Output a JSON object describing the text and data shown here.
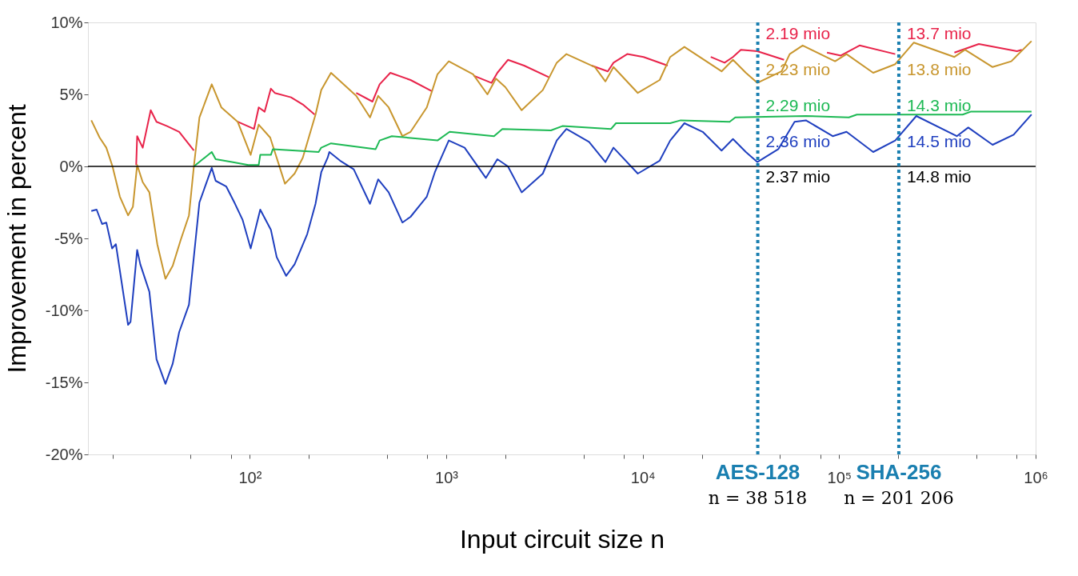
{
  "chart_data": {
    "type": "line",
    "xlabel": "Input circuit size n",
    "ylabel": "Improvement in percent",
    "log": "x",
    "xlim": [
      15,
      1000000
    ],
    "ylim": [
      -20,
      10
    ],
    "xticks": [
      {
        "value": 20,
        "label": null
      },
      {
        "value": 50,
        "label": null
      },
      {
        "value": 80,
        "label": null
      },
      {
        "value": 100,
        "label": "10²"
      },
      {
        "value": 200,
        "label": null
      },
      {
        "value": 500,
        "label": null
      },
      {
        "value": 800,
        "label": null
      },
      {
        "value": 1000,
        "label": "10³"
      },
      {
        "value": 2000,
        "label": null
      },
      {
        "value": 5000,
        "label": null
      },
      {
        "value": 8000,
        "label": null
      },
      {
        "value": 10000,
        "label": "10⁴"
      },
      {
        "value": 20000,
        "label": null
      },
      {
        "value": 50000,
        "label": null
      },
      {
        "value": 80000,
        "label": null
      },
      {
        "value": 100000,
        "label": "10⁵"
      },
      {
        "value": 200000,
        "label": null
      },
      {
        "value": 500000,
        "label": null
      },
      {
        "value": 800000,
        "label": null
      },
      {
        "value": 1000000,
        "label": "10⁶"
      }
    ],
    "yticks": [
      {
        "value": -20,
        "label": "-20%"
      },
      {
        "value": -15,
        "label": "-15%"
      },
      {
        "value": -10,
        "label": "-10%"
      },
      {
        "value": -5,
        "label": "-5%"
      },
      {
        "value": 0,
        "label": "0%"
      },
      {
        "value": 5,
        "label": "5%"
      },
      {
        "value": 10,
        "label": "10%"
      }
    ],
    "series": [
      {
        "color": "#e8234a",
        "x": [
          26.4,
          26.7,
          28.5,
          31.3,
          33.5,
          37.9,
          43.7,
          51.9,
          60,
          86.7,
          105,
          111,
          119,
          128,
          134,
          162,
          186,
          214,
          280,
          348,
          421,
          458,
          519,
          658,
          851,
          1200,
          1380,
          1700,
          1820,
          2060,
          2490,
          3320,
          4500,
          5500,
          6640,
          7100,
          8340,
          10100,
          13400,
          20000,
          22200,
          26100,
          28800,
          31600,
          38300,
          52400,
          65000,
          86700,
          102000,
          127000,
          193000,
          260000,
          386000,
          514000,
          804000,
          851000
        ],
        "values": [
          0.1,
          2.1,
          1.3,
          3.9,
          3.1,
          2.8,
          2.4,
          1.1,
          null,
          3.1,
          2.6,
          4.1,
          3.8,
          5.4,
          5.1,
          4.8,
          4.3,
          3.6,
          null,
          5.1,
          4.5,
          5.7,
          6.5,
          6.0,
          5.2,
          null,
          6.3,
          5.8,
          6.5,
          7.4,
          7.0,
          6.2,
          null,
          7.0,
          6.6,
          7.2,
          7.8,
          7.6,
          7.0,
          null,
          7.6,
          7.2,
          7.6,
          8.1,
          8.0,
          7.4,
          null,
          7.9,
          7.7,
          8.4,
          7.8,
          null,
          7.9,
          8.5,
          8.0,
          8.1
        ]
      },
      {
        "color": "#c8962e",
        "x": [
          15.6,
          17.2,
          18.6,
          20.0,
          21.8,
          24.0,
          25.4,
          26.7,
          28.5,
          30.8,
          33.8,
          37.2,
          40.5,
          44.5,
          49.0,
          51.9,
          55.4,
          64.0,
          71.6,
          86.7,
          101,
          111,
          127,
          151,
          169,
          186,
          216,
          231,
          259,
          348,
          409,
          450,
          509,
          598,
          658,
          796,
          902,
          1030,
          1370,
          1620,
          1790,
          2000,
          2420,
          3100,
          3650,
          4090,
          5710,
          6460,
          7100,
          9440,
          12200,
          13800,
          16300,
          25200,
          28800,
          33500,
          38300,
          50900,
          56000,
          65200,
          95300,
          109000,
          149000,
          193000,
          240000,
          386000,
          437000,
          604000,
          752000,
          953000
        ],
        "values": [
          3.2,
          2.0,
          1.3,
          0.0,
          -2.1,
          -3.4,
          -2.8,
          0.1,
          -1.1,
          -1.8,
          -5.4,
          -7.8,
          -6.9,
          -5.1,
          -3.4,
          0.0,
          3.4,
          5.7,
          4.1,
          3.1,
          0.8,
          2.9,
          2.0,
          -1.2,
          -0.5,
          0.6,
          3.6,
          5.3,
          6.5,
          4.9,
          3.4,
          4.9,
          4.1,
          2.1,
          2.4,
          4.1,
          6.4,
          7.3,
          6.4,
          5.0,
          6.1,
          5.5,
          3.9,
          5.3,
          7.2,
          7.8,
          6.9,
          5.9,
          6.9,
          5.1,
          6.0,
          7.6,
          8.3,
          6.6,
          7.4,
          6.5,
          5.8,
          6.6,
          7.8,
          8.4,
          7.3,
          7.8,
          6.5,
          7.1,
          8.6,
          7.6,
          8.1,
          6.9,
          7.3,
          8.7
        ]
      },
      {
        "color": "#1db954",
        "x": [
          51.9,
          64.0,
          67.0,
          81.1,
          98.2,
          111,
          113,
          128,
          131,
          224,
          231,
          259,
          437,
          458,
          528,
          902,
          1040,
          1750,
          1930,
          3410,
          3900,
          6900,
          7310,
          13800,
          15600,
          27700,
          29600,
          67700,
          112000,
          123000,
          425000,
          467000,
          953000
        ],
        "values": [
          0.0,
          1.0,
          0.5,
          0.3,
          0.1,
          0.1,
          0.8,
          0.8,
          1.2,
          1.0,
          1.3,
          1.6,
          1.2,
          1.8,
          2.1,
          1.8,
          2.4,
          2.1,
          2.6,
          2.5,
          2.8,
          2.6,
          3.0,
          3.0,
          3.2,
          3.1,
          3.4,
          3.5,
          3.4,
          3.6,
          3.6,
          3.8,
          3.8
        ]
      },
      {
        "color": "#1f3fbf",
        "x": [
          15.6,
          16.6,
          17.7,
          18.6,
          19.9,
          20.8,
          24.0,
          24.7,
          26.7,
          27.7,
          30.8,
          33.5,
          37.2,
          40.5,
          43.7,
          49.0,
          55.4,
          64.0,
          67.0,
          75.9,
          83.4,
          91.8,
          101,
          113,
          128,
          137,
          153,
          169,
          196,
          216,
          231,
          249,
          254,
          288,
          338,
          409,
          450,
          509,
          598,
          658,
          796,
          875,
          1030,
          1240,
          1590,
          1820,
          2060,
          2420,
          3100,
          3650,
          4090,
          5330,
          6460,
          7100,
          9440,
          12200,
          13800,
          16300,
          20200,
          25200,
          28800,
          33500,
          38300,
          49000,
          59300,
          67700,
          92700,
          109000,
          149000,
          193000,
          247000,
          397000,
          454000,
          604000,
          773000,
          953000
        ],
        "values": [
          -3.1,
          -3.0,
          -4.0,
          -3.9,
          -5.7,
          -5.4,
          -11.0,
          -10.8,
          -5.8,
          -6.8,
          -8.7,
          -13.4,
          -15.1,
          -13.7,
          -11.5,
          -9.6,
          -2.5,
          -0.1,
          -1.0,
          -1.4,
          -2.5,
          -3.7,
          -5.7,
          -3.0,
          -4.4,
          -6.3,
          -7.6,
          -6.8,
          -4.7,
          -2.6,
          -0.4,
          0.6,
          1.0,
          0.4,
          -0.2,
          -2.6,
          -0.9,
          -1.8,
          -3.9,
          -3.5,
          -2.1,
          -0.4,
          1.8,
          1.3,
          -0.8,
          0.5,
          0.0,
          -1.8,
          -0.5,
          1.8,
          2.6,
          1.7,
          0.3,
          1.3,
          -0.5,
          0.4,
          1.8,
          3.0,
          2.4,
          1.1,
          1.9,
          1.0,
          0.3,
          1.2,
          3.1,
          3.2,
          2.1,
          2.4,
          1.0,
          1.8,
          3.5,
          2.1,
          2.7,
          1.5,
          2.2,
          3.6
        ]
      }
    ],
    "ref_lines": [
      {
        "axis": "y",
        "value": 0,
        "color": "#000000",
        "line_style": "solid"
      },
      {
        "axis": "x",
        "value": 38518,
        "label": "AES-128",
        "color": "#1a7fb0",
        "line_style": "dotted"
      },
      {
        "axis": "x",
        "value": 201206,
        "label": "SHA-256",
        "color": "#1a7fb0",
        "line_style": "dotted"
      }
    ],
    "annotations": [
      "2.19 mio",
      "2.23 mio",
      "2.29 mio",
      "2.36 mio",
      "2.37 mio",
      "n = 38 518",
      "13.7 mio",
      "13.8 mio",
      "14.3 mio",
      "14.5 mio",
      "14.8 mio",
      "n = 201 206"
    ]
  }
}
